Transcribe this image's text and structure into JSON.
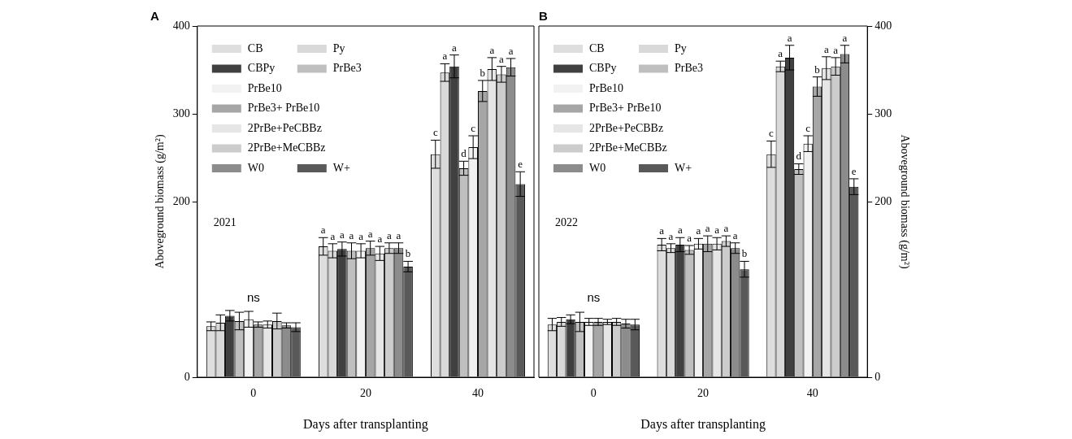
{
  "chart_data": [
    {
      "type": "bar",
      "title": "A",
      "xlabel": "Days after transplanting",
      "ylabel": "Aboveground biomass (g/m²)",
      "categories": [
        "0",
        "20",
        "40"
      ],
      "ylim": [
        0,
        400
      ],
      "yticks": [
        0,
        200,
        300,
        400
      ],
      "grid": false,
      "legend": "top left",
      "annotations": [
        "2021",
        "ns"
      ],
      "series": [
        {
          "name": "CB",
          "color": "#dedede",
          "values": [
            58,
            149,
            254
          ],
          "errors": [
            5,
            10,
            16
          ],
          "value_labels": [
            null,
            "a",
            "c"
          ]
        },
        {
          "name": "Py",
          "color": "#d9d9d9",
          "values": [
            62,
            144,
            347
          ],
          "errors": [
            9,
            8,
            10
          ],
          "value_labels": [
            null,
            "a",
            "a"
          ]
        },
        {
          "name": "CBPy",
          "color": "#404040",
          "values": [
            70,
            146,
            354
          ],
          "errors": [
            6,
            8,
            13
          ],
          "value_labels": [
            null,
            "a",
            "a"
          ]
        },
        {
          "name": "PrBe3",
          "color": "#bfbfbf",
          "values": [
            64,
            144,
            238
          ],
          "errors": [
            10,
            9,
            8
          ],
          "value_labels": [
            null,
            "a",
            "d"
          ]
        },
        {
          "name": "PrBe10",
          "color": "#f2f2f2",
          "values": [
            66,
            144,
            262
          ],
          "errors": [
            9,
            8,
            13
          ],
          "value_labels": [
            null,
            "a",
            "c"
          ]
        },
        {
          "name": "PrBe3+ PrBe10",
          "color": "#a6a6a6",
          "values": [
            60,
            147,
            326
          ],
          "errors": [
            3,
            8,
            12
          ],
          "value_labels": [
            null,
            "a",
            "b"
          ]
        },
        {
          "name": "2PrBe+PeCBBz",
          "color": "#e6e6e6",
          "values": [
            60,
            141,
            351
          ],
          "errors": [
            4,
            8,
            13
          ],
          "value_labels": [
            null,
            "a",
            "a"
          ]
        },
        {
          "name": "2PrBe+MeCBBz",
          "color": "#cccccc",
          "values": [
            64,
            147,
            345
          ],
          "errors": [
            9,
            6,
            9
          ],
          "value_labels": [
            null,
            "a",
            "a"
          ]
        },
        {
          "name": "W0",
          "color": "#8c8c8c",
          "values": [
            59,
            147,
            353
          ],
          "errors": [
            3,
            6,
            10
          ],
          "value_labels": [
            null,
            "a",
            "a"
          ]
        },
        {
          "name": "W+",
          "color": "#595959",
          "values": [
            57,
            126,
            220
          ],
          "errors": [
            5,
            6,
            14
          ],
          "value_labels": [
            null,
            "b",
            "e"
          ]
        }
      ]
    },
    {
      "type": "bar",
      "title": "B",
      "xlabel": "Days after transplanting",
      "ylabel": "Aboveground biomass (g/m²)",
      "categories": [
        "0",
        "20",
        "40"
      ],
      "ylim": [
        0,
        400
      ],
      "yticks": [
        0,
        200,
        300,
        400
      ],
      "grid": false,
      "legend": "top left",
      "annotations": [
        "2022",
        "ns"
      ],
      "series": [
        {
          "name": "CB",
          "color": "#dedede",
          "values": [
            60,
            151,
            254
          ],
          "errors": [
            7,
            7,
            15
          ],
          "value_labels": [
            null,
            "a",
            "c"
          ]
        },
        {
          "name": "Py",
          "color": "#d9d9d9",
          "values": [
            63,
            147,
            354
          ],
          "errors": [
            5,
            5,
            6
          ],
          "value_labels": [
            null,
            "a",
            "a"
          ]
        },
        {
          "name": "CBPy",
          "color": "#404040",
          "values": [
            66,
            151,
            364
          ],
          "errors": [
            5,
            8,
            14
          ],
          "value_labels": [
            null,
            "a",
            "a"
          ]
        },
        {
          "name": "PrBe3",
          "color": "#bfbfbf",
          "values": [
            63,
            145,
            237
          ],
          "errors": [
            11,
            5,
            6
          ],
          "value_labels": [
            null,
            "a",
            "d"
          ]
        },
        {
          "name": "PrBe10",
          "color": "#f2f2f2",
          "values": [
            63,
            152,
            266
          ],
          "errors": [
            4,
            6,
            9
          ],
          "value_labels": [
            null,
            "a",
            "c"
          ]
        },
        {
          "name": "PrBe3+ PrBe10",
          "color": "#a6a6a6",
          "values": [
            63,
            152,
            331
          ],
          "errors": [
            4,
            9,
            11
          ],
          "value_labels": [
            null,
            "a",
            "b"
          ]
        },
        {
          "name": "2PrBe+PeCBBz",
          "color": "#e6e6e6",
          "values": [
            63,
            152,
            352
          ],
          "errors": [
            3,
            7,
            13
          ],
          "value_labels": [
            null,
            "a",
            "a"
          ]
        },
        {
          "name": "2PrBe+MeCBBz",
          "color": "#cccccc",
          "values": [
            63,
            155,
            354
          ],
          "errors": [
            4,
            6,
            10
          ],
          "value_labels": [
            null,
            "a",
            "a"
          ]
        },
        {
          "name": "W0",
          "color": "#8c8c8c",
          "values": [
            61,
            147,
            368
          ],
          "errors": [
            5,
            6,
            10
          ],
          "value_labels": [
            null,
            "a",
            "a"
          ]
        },
        {
          "name": "W+",
          "color": "#595959",
          "values": [
            60,
            123,
            217
          ],
          "errors": [
            6,
            9,
            9
          ],
          "value_labels": [
            null,
            "b",
            "e"
          ]
        }
      ]
    }
  ]
}
